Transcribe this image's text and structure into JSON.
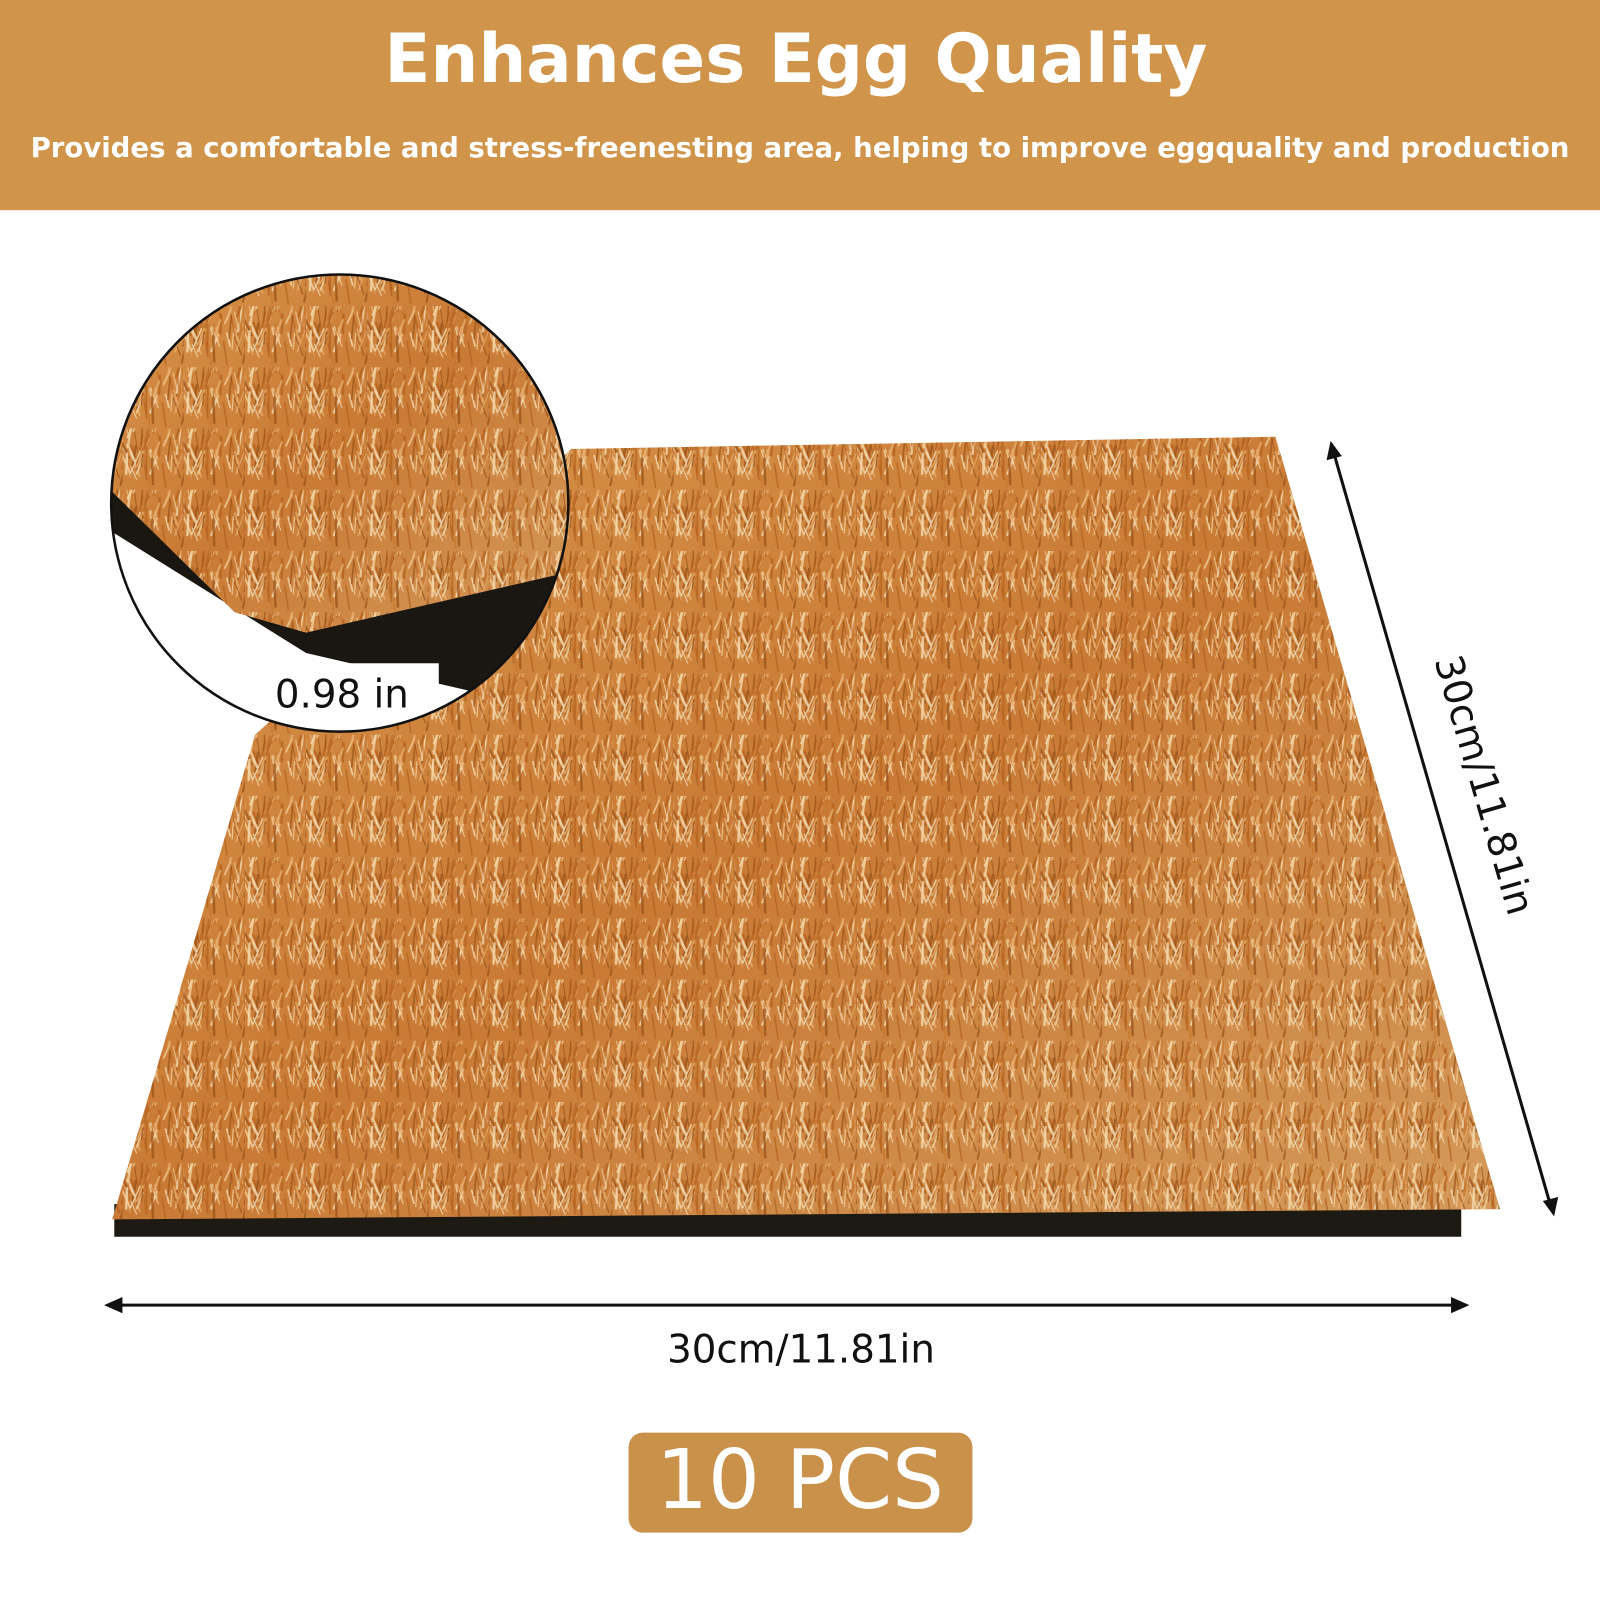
{
  "header": {
    "title": "Enhances Egg Quality",
    "subtitle": "Provides a comfortable and stress-freenesting area, helping to improve eggquality and production"
  },
  "dimensions": {
    "depth": "0.98 in",
    "width": "30cm/11.81in",
    "height": "30cm/11.81in"
  },
  "badge": "10 PCS"
}
